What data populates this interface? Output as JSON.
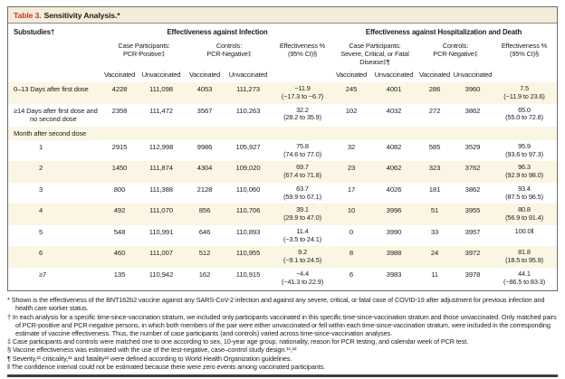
{
  "title": {
    "label": "Table 3.",
    "text": "Sensitivity Analysis.*"
  },
  "header": {
    "substudies": "Substudies†",
    "group_infection": "Effectiveness against Infection",
    "group_hosp": "Effectiveness against Hospitalization and Death",
    "sub": {
      "case_pcr_pos": "Case Participants:\nPCR-Positive‡",
      "controls_neg_1": "Controls:\nPCR-Negative‡",
      "eff_1": "Effectiveness %\n(95% CI)§",
      "case_severe": "Case Participants:\nSevere, Critical, or Fatal\nDisease‡¶",
      "controls_neg_2": "Controls:\nPCR-Negative‡",
      "eff_2": "Effectiveness %\n(95% CI)§"
    },
    "vaccinated": "Vaccinated",
    "unvaccinated": "Unvaccinated"
  },
  "rows": [
    {
      "label": "0–13 Days after first dose",
      "cells": [
        "4228",
        "111,098",
        "4053",
        "111,273",
        "−11.9\n(−17.3 to −6.7)",
        "245",
        "4001",
        "286",
        "3960",
        "7.5\n(−11.9 to 23.6)"
      ]
    },
    {
      "label": "≥14 Days after first dose and no second dose",
      "cells": [
        "2358",
        "111,472",
        "3567",
        "110,263",
        "32.2\n(28.2 to 35.9)",
        "102",
        "4032",
        "272",
        "3862",
        "65.0\n(55.0 to 72.8)"
      ]
    },
    {
      "label": "Month after second dose",
      "cells": [
        "",
        "",
        "",
        "",
        "",
        "",
        "",
        "",
        "",
        ""
      ]
    },
    {
      "label": "1",
      "cells": [
        "2915",
        "112,998",
        "9986",
        "105,927",
        "75.8\n(74.6 to 77.0)",
        "32",
        "4082",
        "585",
        "3529",
        "95.9\n(93.6 to 97.3)"
      ]
    },
    {
      "label": "2",
      "cells": [
        "1450",
        "111,874",
        "4304",
        "109,020",
        "69.7\n(67.4 to 71.8)",
        "23",
        "4062",
        "323",
        "3762",
        "96.3\n(92.9 to 98.0)"
      ]
    },
    {
      "label": "3",
      "cells": [
        "800",
        "111,388",
        "2128",
        "110,060",
        "63.7\n(59.9 to 67.1)",
        "17",
        "4026",
        "181",
        "3862",
        "93.4\n(87.5 to 96.5)"
      ]
    },
    {
      "label": "4",
      "cells": [
        "492",
        "111,070",
        "856",
        "110,706",
        "39.1\n(29.9 to 47.0)",
        "10",
        "3996",
        "51",
        "3955",
        "80.8\n(56.9 to 91.4)"
      ]
    },
    {
      "label": "5",
      "cells": [
        "548",
        "110,991",
        "646",
        "110,893",
        "11.4\n(−3.5 to 24.1)",
        "0",
        "3990",
        "33",
        "3957",
        "100.0‖"
      ]
    },
    {
      "label": "6",
      "cells": [
        "460",
        "111,007",
        "512",
        "110,955",
        "9.2\n(−9.1 to 24.5)",
        "8",
        "3988",
        "24",
        "3972",
        "81.8\n(18.5 to 95.9)"
      ]
    },
    {
      "label": "≥7",
      "cells": [
        "135",
        "110,942",
        "162",
        "110,915",
        "−4.4\n(−41.3 to 22.9)",
        "6",
        "3983",
        "11",
        "3978",
        "44.1\n(−86.5 to 83.3)"
      ]
    }
  ],
  "footnotes": [
    "* Shown is the effectiveness of the BNT162b2 vaccine against any SARS-CoV-2 infection and against any severe, critical, or fatal case of COVID-19 after adjustment for previous infection and health care worker status.",
    "† In each analysis for a specific time-since-vaccination stratum, we included only participants vaccinated in this specific time-since-vaccination stratum and those unvaccinated. Only matched pairs of PCR-positive and PCR-negative persons, in which both members of the pair were either unvaccinated or fell within each time-since-vaccination stratum, were included in the corresponding estimate of vaccine effectiveness. Thus, the number of case participants (and controls) varied across time-since-vaccination analyses.",
    "‡ Case participants and controls were matched one to one according to sex, 10-year age group, nationality, reason for PCR testing, and calendar week of PCR test.",
    "§ Vaccine effectiveness was estimated with the use of the test-negative, case–control study design.¹¹,¹²",
    "¶ Severity,²¹ criticality,²¹ and fatality²² were defined according to World Health Organization guidelines.",
    "‖ The confidence interval could not be estimated because there were zero events among vaccinated participants."
  ]
}
